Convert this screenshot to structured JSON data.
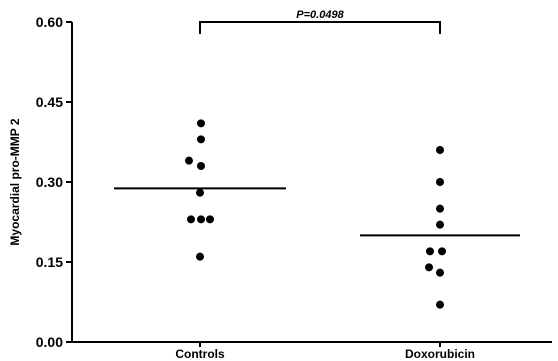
{
  "chart_data": {
    "type": "scatter",
    "title": "",
    "xlabel": "",
    "ylabel": "Myocardial pro-MMP 2",
    "ylim": [
      0,
      0.6
    ],
    "yticks": [
      "0.00",
      "0.15",
      "0.30",
      "0.45",
      "0.60"
    ],
    "yticks_values": [
      0.0,
      0.15,
      0.3,
      0.45,
      0.6
    ],
    "categories": [
      "Controls",
      "Doxorubicin"
    ],
    "grid": false,
    "series": [
      {
        "category": "Controls",
        "values": [
          0.41,
          0.38,
          0.34,
          0.33,
          0.28,
          0.23,
          0.23,
          0.23,
          0.16
        ],
        "mean": 0.288
      },
      {
        "category": "Doxorubicin",
        "values": [
          0.36,
          0.3,
          0.25,
          0.22,
          0.17,
          0.17,
          0.14,
          0.13,
          0.07
        ],
        "mean": 0.2
      }
    ],
    "annotation": {
      "text": "P=0.0498",
      "from": "Controls",
      "to": "Doxorubicin",
      "y": 0.6
    }
  }
}
